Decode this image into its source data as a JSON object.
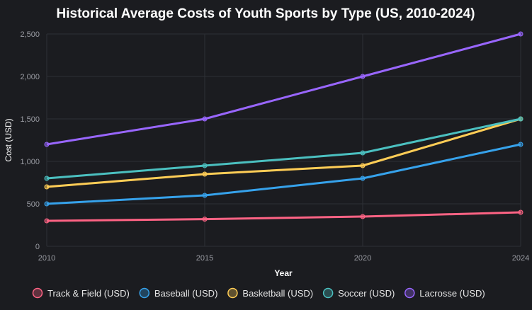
{
  "chart_data": {
    "type": "line",
    "title": "Historical Average Costs of Youth Sports by Type (US, 2010-2024)",
    "xlabel": "Year",
    "ylabel": "Cost (USD)",
    "categories": [
      "2010",
      "2015",
      "2020",
      "2024"
    ],
    "ylim": [
      0,
      2500
    ],
    "yticks": [
      0,
      500,
      1000,
      1500,
      2000,
      2500
    ],
    "ytick_labels": [
      "0",
      "500",
      "1,000",
      "1,500",
      "2,000",
      "2,500"
    ],
    "grid": true,
    "legend_position": "bottom",
    "series": [
      {
        "name": "Track & Field (USD)",
        "color": "#ff6384",
        "values": [
          300,
          320,
          350,
          400
        ]
      },
      {
        "name": "Baseball (USD)",
        "color": "#36a2eb",
        "values": [
          500,
          600,
          800,
          1200
        ]
      },
      {
        "name": "Basketball (USD)",
        "color": "#ffcd56",
        "values": [
          700,
          850,
          950,
          1500
        ]
      },
      {
        "name": "Soccer (USD)",
        "color": "#4bc0c0",
        "values": [
          800,
          950,
          1100,
          1500
        ]
      },
      {
        "name": "Lacrosse (USD)",
        "color": "#9966ff",
        "values": [
          1200,
          1500,
          2000,
          2500
        ]
      }
    ]
  }
}
